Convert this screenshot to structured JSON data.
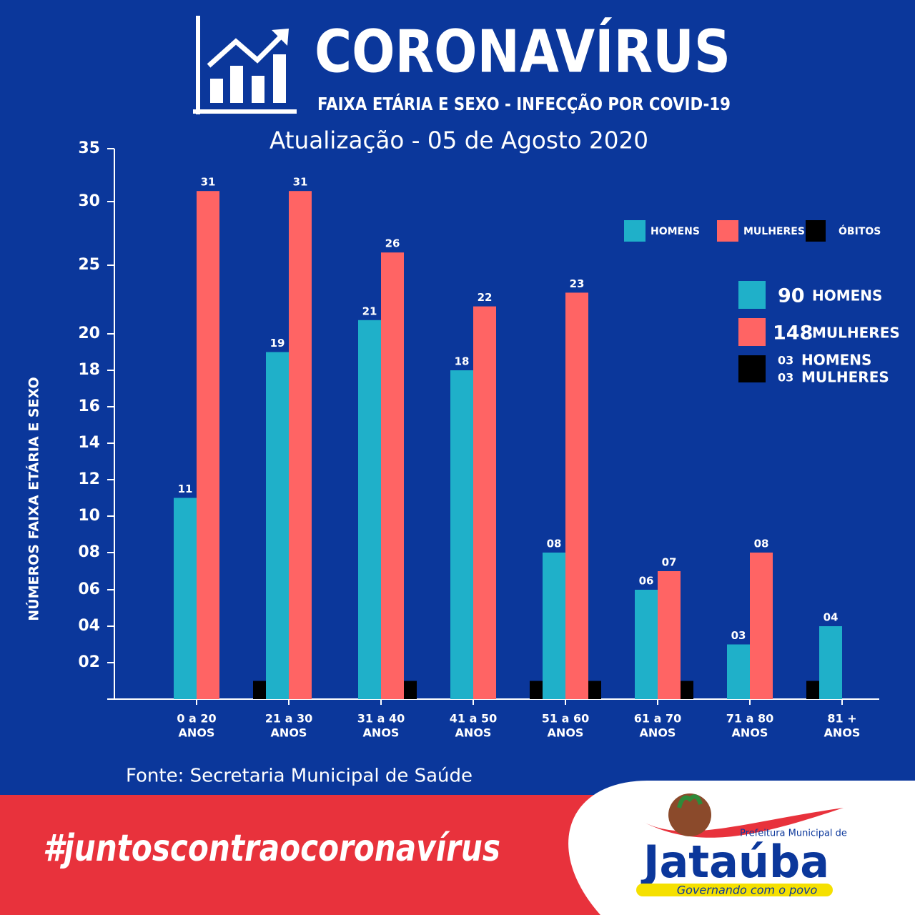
{
  "header": {
    "title": "CORONAVÍRUS",
    "subtitle": "FAIXA ETÁRIA E SEXO - INFECÇÃO POR COVID-19",
    "update": "Atualização - 05 de Agosto 2020"
  },
  "chart_data": {
    "type": "bar",
    "ylabel": "NÚMEROS FAIXA ETÁRIA E SEXO",
    "categories": [
      [
        "0 a 20",
        "ANOS"
      ],
      [
        "21 a 30",
        "ANOS"
      ],
      [
        "31 a 40",
        "ANOS"
      ],
      [
        "41 a 50",
        "ANOS"
      ],
      [
        "51 a 60",
        "ANOS"
      ],
      [
        "61 a 70",
        "ANOS"
      ],
      [
        "71 a 80",
        "ANOS"
      ],
      [
        "81 +",
        "ANOS"
      ]
    ],
    "series": [
      {
        "name": "HOMENS",
        "color": "#1fb0c9",
        "values": [
          11,
          19,
          21,
          18,
          8,
          6,
          3,
          4
        ],
        "value_labels": [
          "11",
          "19",
          "21",
          "18",
          "08",
          "06",
          "03",
          "04"
        ]
      },
      {
        "name": "MULHERES",
        "color": "#ff6464",
        "values": [
          31,
          31,
          26,
          22,
          23,
          7,
          8,
          null
        ],
        "value_labels": [
          "31",
          "31",
          "26",
          "22",
          "23",
          "07",
          "08",
          null
        ]
      },
      {
        "name": "ÓBITOS",
        "color": "#000000",
        "values": [
          [
            null,
            null
          ],
          [
            1,
            null
          ],
          [
            null,
            1
          ],
          [
            null,
            null
          ],
          [
            1,
            1
          ],
          [
            null,
            1
          ],
          [
            null,
            null
          ],
          [
            1,
            null
          ]
        ]
      }
    ],
    "ylim": [
      0,
      35
    ],
    "yticks": [
      {
        "value": 2,
        "label": "02"
      },
      {
        "value": 4,
        "label": "04"
      },
      {
        "value": 6,
        "label": "06"
      },
      {
        "value": 8,
        "label": "08"
      },
      10,
      12,
      14,
      16,
      18,
      20,
      25,
      30,
      35
    ],
    "summary": [
      {
        "count": 90,
        "label": "HOMENS",
        "color": "#1fb0c9"
      },
      {
        "count": 148,
        "label": "MULHERES",
        "color": "#ff6464"
      }
    ],
    "deaths": {
      "color": "#000000",
      "items": [
        {
          "count": {
            "value": 3,
            "label": "03"
          },
          "label": "HOMENS"
        },
        {
          "count": {
            "value": 3,
            "label": "03"
          },
          "label": "MULHERES"
        }
      ]
    }
  },
  "source": "Fonte: Secretaria Municipal de Saúde",
  "footer": {
    "hashtag": "#juntoscontraocoronavírus",
    "logo_top": "Prefeitura Municipal de",
    "logo_name": "Jataúba",
    "logo_slogan": "Governando com o povo"
  }
}
